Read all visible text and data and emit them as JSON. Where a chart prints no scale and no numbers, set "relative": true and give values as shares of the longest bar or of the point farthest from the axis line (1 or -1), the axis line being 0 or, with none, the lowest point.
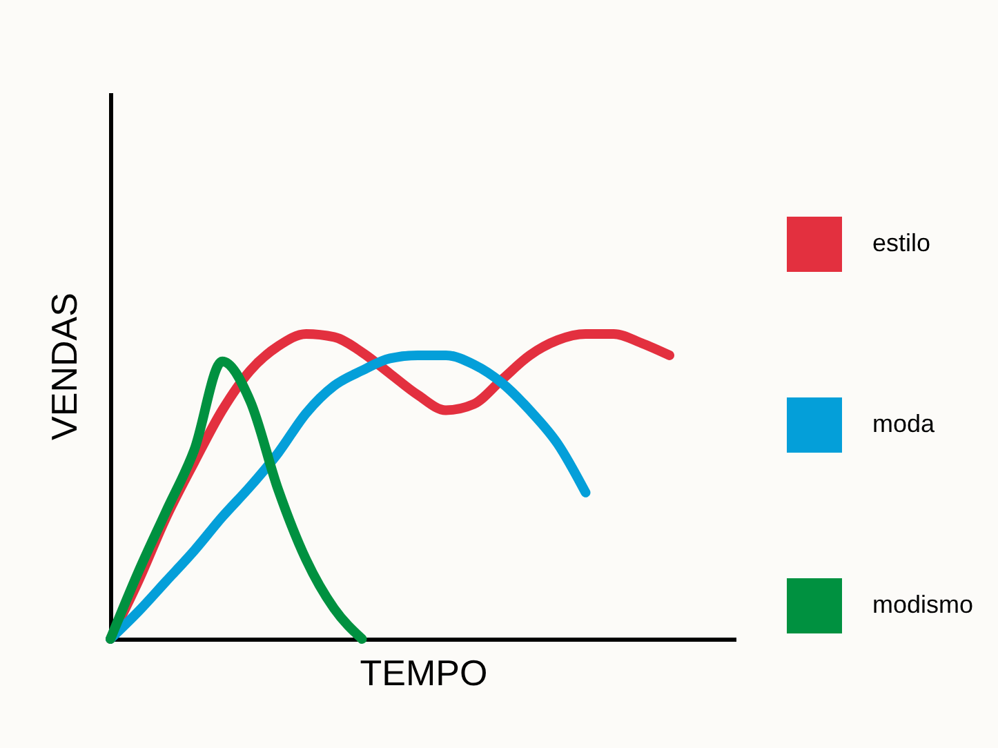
{
  "chart_data": {
    "type": "line",
    "relative": true,
    "xlabel": "TEMPO",
    "ylabel": "VENDAS",
    "legend": "right",
    "categories": [
      null,
      null,
      null,
      null,
      null,
      null,
      null,
      null,
      null,
      null,
      null,
      null,
      null,
      null,
      null,
      null,
      null,
      null,
      null,
      null,
      null
    ],
    "series": [
      {
        "name": "estilo",
        "color": "#e3303f",
        "values": [
          0,
          0.19,
          0.4,
          0.58,
          0.75,
          0.88,
          0.96,
          1,
          0.99,
          0.94,
          0.87,
          0.8,
          0.75,
          0.77,
          0.85,
          0.93,
          0.98,
          1,
          1,
          0.97,
          0.93
        ]
      },
      {
        "name": "moda",
        "color": "#049fd9",
        "values": [
          0,
          0.09,
          0.19,
          0.29,
          0.4,
          0.5,
          0.61,
          0.74,
          0.83,
          0.88,
          0.92,
          0.93,
          0.93,
          0.9,
          0.84,
          0.75,
          0.64,
          0.48,
          null,
          null,
          null
        ]
      },
      {
        "name": "modismo",
        "color": "#009140",
        "values": [
          0,
          0.22,
          0.42,
          0.62,
          0.91,
          0.78,
          0.49,
          0.26,
          0.1,
          0,
          null,
          null,
          null,
          null,
          null,
          null,
          null,
          null,
          null,
          null,
          null
        ]
      }
    ]
  }
}
